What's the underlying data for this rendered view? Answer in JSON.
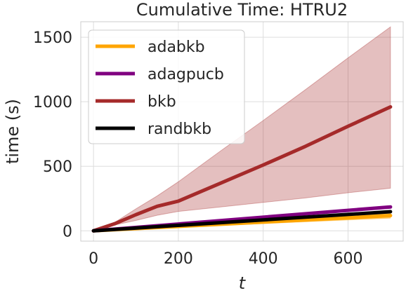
{
  "chart_data": {
    "type": "line",
    "title": "Cumulative Time: HTRU2",
    "xlabel": "t",
    "ylabel": "time (s)",
    "xlim": [
      -30,
      730
    ],
    "ylim": [
      -80,
      1620
    ],
    "x_ticks": [
      0,
      200,
      400,
      600
    ],
    "y_ticks": [
      0,
      500,
      1000,
      1500
    ],
    "grid": true,
    "legend_position": "top-left",
    "series": [
      {
        "name": "adabkb",
        "color": "#ffa500",
        "x": [
          0,
          700
        ],
        "y": [
          0,
          118
        ],
        "band_lower": [
          0,
          98
        ],
        "band_upper": [
          0,
          138
        ]
      },
      {
        "name": "adagpucb",
        "color": "#800080",
        "x": [
          0,
          700
        ],
        "y": [
          0,
          185
        ],
        "band_lower": [
          0,
          175
        ],
        "band_upper": [
          0,
          195
        ]
      },
      {
        "name": "bkb",
        "color": "#a52a2a",
        "x": [
          0,
          50,
          100,
          150,
          200,
          300,
          400,
          500,
          600,
          700
        ],
        "y": [
          0,
          55,
          125,
          190,
          230,
          370,
          510,
          655,
          810,
          960
        ],
        "band_lower": [
          0,
          45,
          80,
          120,
          150,
          185,
          220,
          255,
          295,
          330
        ],
        "band_upper": [
          0,
          65,
          170,
          270,
          380,
          620,
          855,
          1095,
          1340,
          1580
        ]
      },
      {
        "name": "randbkb",
        "color": "#000000",
        "x": [
          0,
          700
        ],
        "y": [
          0,
          148
        ],
        "band_lower": [
          0,
          140
        ],
        "band_upper": [
          0,
          156
        ]
      }
    ]
  }
}
